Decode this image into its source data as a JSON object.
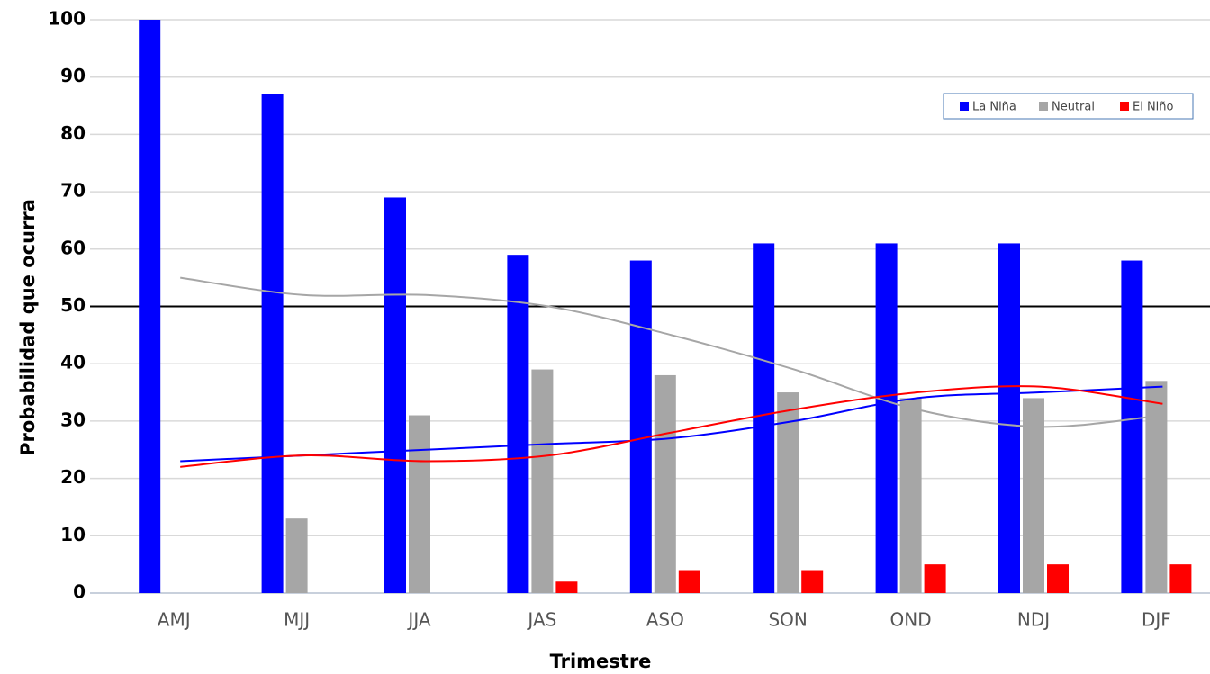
{
  "chart_data": {
    "type": "bar",
    "x_label": "Trimestre",
    "y_label": "Probabilidad que ocurra",
    "categories": [
      "AMJ",
      "MJJ",
      "JJA",
      "JAS",
      "ASO",
      "SON",
      "OND",
      "NDJ",
      "DJF"
    ],
    "series": [
      {
        "name": "La Niña",
        "color": "#0000ff",
        "values": [
          100,
          87,
          69,
          59,
          58,
          61,
          61,
          61,
          58
        ]
      },
      {
        "name": "Neutral",
        "color": "#a6a6a6",
        "values": [
          0,
          13,
          31,
          39,
          38,
          35,
          34,
          34,
          37
        ]
      },
      {
        "name": "El Niño",
        "color": "#ff0000",
        "values": [
          0,
          0,
          0,
          2,
          4,
          4,
          5,
          5,
          5
        ]
      }
    ],
    "lines": [
      {
        "color": "#0000ff",
        "values": [
          23,
          24,
          25,
          26,
          27,
          30,
          34,
          35,
          36
        ]
      },
      {
        "color": "#a6a6a6",
        "values": [
          55,
          52,
          52,
          50,
          45,
          39,
          32,
          29,
          31
        ]
      },
      {
        "color": "#ff0000",
        "values": [
          22,
          24,
          23,
          24,
          28,
          32,
          35,
          36,
          33
        ]
      }
    ],
    "hline": 50,
    "ylim": [
      0,
      100
    ],
    "yticks": [
      0,
      10,
      20,
      30,
      40,
      50,
      60,
      70,
      80,
      90,
      100
    ],
    "grid": true,
    "legend": "upper right"
  }
}
